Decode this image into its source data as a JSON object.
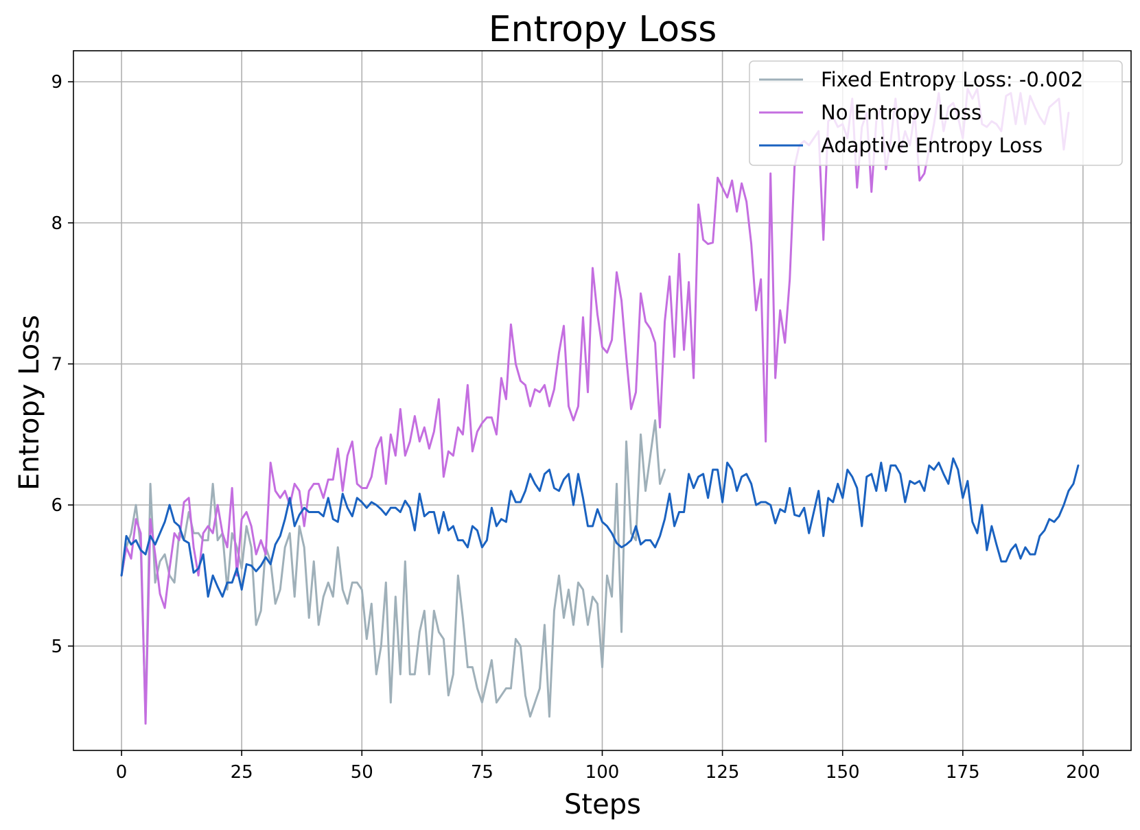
{
  "chart_data": {
    "type": "line",
    "title": "Entropy Loss",
    "xlabel": "Steps",
    "ylabel": "Entropy Loss",
    "xlim": [
      -10,
      210
    ],
    "ylim": [
      4.26,
      9.22
    ],
    "xticks": [
      0,
      25,
      50,
      75,
      100,
      125,
      150,
      175,
      200
    ],
    "yticks": [
      5,
      6,
      7,
      8,
      9
    ],
    "grid": true,
    "legend_position": "top-right",
    "series": [
      {
        "name": "Fixed Entropy Loss: -0.002",
        "color": "#9fb0b9",
        "x_start": 0,
        "values": [
          5.5,
          5.7,
          5.8,
          6.0,
          5.7,
          4.5,
          6.15,
          5.45,
          5.6,
          5.65,
          5.5,
          5.45,
          5.8,
          5.75,
          5.95,
          5.8,
          5.8,
          5.75,
          5.75,
          6.15,
          5.75,
          5.8,
          5.4,
          5.8,
          5.7,
          5.55,
          5.85,
          5.7,
          5.15,
          5.25,
          5.7,
          5.6,
          5.3,
          5.4,
          5.7,
          5.8,
          5.35,
          5.85,
          5.7,
          5.2,
          5.6,
          5.15,
          5.35,
          5.45,
          5.35,
          5.7,
          5.4,
          5.3,
          5.45,
          5.45,
          5.4,
          5.05,
          5.3,
          4.8,
          5.0,
          5.45,
          4.6,
          5.35,
          4.8,
          5.6,
          4.8,
          4.8,
          5.1,
          5.25,
          4.8,
          5.25,
          5.1,
          5.05,
          4.65,
          4.8,
          5.5,
          5.2,
          4.85,
          4.85,
          4.7,
          4.6,
          4.75,
          4.9,
          4.6,
          4.65,
          4.7,
          4.7,
          5.05,
          5.0,
          4.65,
          4.5,
          4.6,
          4.7,
          5.15,
          4.5,
          5.25,
          5.5,
          5.2,
          5.4,
          5.15,
          5.45,
          5.4,
          5.15,
          5.35,
          5.3,
          4.85,
          5.5,
          5.35,
          6.15,
          5.1,
          6.45,
          5.8,
          5.75,
          6.5,
          6.1,
          6.35,
          6.6,
          6.15,
          6.25
        ]
      },
      {
        "name": "No Entropy Loss",
        "color": "#c46ee0",
        "x_start": 0,
        "values": [
          5.5,
          5.7,
          5.62,
          5.9,
          5.8,
          4.45,
          5.9,
          5.65,
          5.37,
          5.27,
          5.55,
          5.8,
          5.75,
          6.02,
          6.05,
          5.7,
          5.5,
          5.8,
          5.85,
          5.8,
          6.0,
          5.8,
          5.7,
          6.12,
          5.5,
          5.9,
          5.95,
          5.85,
          5.65,
          5.75,
          5.65,
          6.3,
          6.1,
          6.05,
          6.1,
          6.0,
          6.15,
          6.1,
          5.85,
          6.1,
          6.15,
          6.15,
          6.05,
          6.18,
          6.18,
          6.4,
          6.1,
          6.35,
          6.45,
          6.15,
          6.12,
          6.12,
          6.2,
          6.4,
          6.48,
          6.15,
          6.5,
          6.35,
          6.68,
          6.35,
          6.45,
          6.63,
          6.45,
          6.55,
          6.4,
          6.52,
          6.75,
          6.2,
          6.38,
          6.35,
          6.55,
          6.5,
          6.85,
          6.38,
          6.52,
          6.58,
          6.62,
          6.62,
          6.5,
          6.9,
          6.75,
          7.28,
          7.0,
          6.88,
          6.85,
          6.7,
          6.82,
          6.8,
          6.85,
          6.7,
          6.82,
          7.08,
          7.27,
          6.7,
          6.6,
          6.7,
          7.33,
          6.8,
          7.68,
          7.35,
          7.12,
          7.08,
          7.17,
          7.65,
          7.45,
          7.05,
          6.68,
          6.8,
          7.5,
          7.3,
          7.25,
          7.15,
          6.55,
          7.3,
          7.62,
          7.05,
          7.78,
          7.1,
          7.58,
          6.9,
          8.13,
          7.88,
          7.85,
          7.86,
          8.32,
          8.25,
          8.18,
          8.3,
          8.08,
          8.28,
          8.15,
          7.85,
          7.38,
          7.6,
          6.45,
          8.35,
          6.9,
          7.38,
          7.15,
          7.6,
          8.4,
          8.55,
          8.58,
          8.55,
          8.6,
          8.65,
          7.88,
          8.72,
          8.75,
          8.68,
          8.7,
          8.6,
          8.88,
          8.25,
          8.68,
          8.78,
          8.22,
          8.72,
          8.82,
          8.38,
          8.58,
          8.88,
          8.5,
          8.65,
          8.55,
          8.78,
          8.3,
          8.35,
          8.52,
          8.7,
          8.92,
          8.65,
          8.82,
          8.85,
          8.75,
          8.6,
          8.95,
          8.88,
          8.95,
          8.7,
          8.68,
          8.72,
          8.7,
          8.65,
          8.9,
          8.92,
          8.7,
          8.92,
          8.7,
          8.9,
          8.82,
          8.75,
          8.7,
          8.82,
          8.85,
          8.88,
          8.52,
          8.78
        ]
      },
      {
        "name": "Adaptive Entropy Loss",
        "color": "#1a62c0",
        "x_start": 0,
        "values": [
          5.5,
          5.78,
          5.72,
          5.75,
          5.68,
          5.65,
          5.78,
          5.72,
          5.8,
          5.88,
          6.0,
          5.88,
          5.85,
          5.75,
          5.73,
          5.52,
          5.55,
          5.65,
          5.35,
          5.5,
          5.42,
          5.35,
          5.45,
          5.45,
          5.55,
          5.4,
          5.58,
          5.57,
          5.53,
          5.57,
          5.63,
          5.58,
          5.72,
          5.78,
          5.9,
          6.05,
          5.85,
          5.93,
          5.98,
          5.95,
          5.95,
          5.95,
          5.92,
          6.05,
          5.9,
          5.88,
          6.08,
          5.98,
          5.92,
          6.05,
          6.02,
          5.98,
          6.02,
          6.0,
          5.97,
          5.93,
          5.98,
          5.98,
          5.95,
          6.03,
          5.98,
          5.82,
          6.08,
          5.92,
          5.95,
          5.95,
          5.8,
          5.95,
          5.82,
          5.85,
          5.75,
          5.75,
          5.7,
          5.85,
          5.82,
          5.7,
          5.75,
          5.98,
          5.85,
          5.9,
          5.88,
          6.1,
          6.02,
          6.02,
          6.1,
          6.22,
          6.15,
          6.1,
          6.22,
          6.25,
          6.12,
          6.1,
          6.18,
          6.22,
          6.0,
          6.22,
          6.05,
          5.85,
          5.85,
          5.97,
          5.88,
          5.85,
          5.8,
          5.73,
          5.7,
          5.72,
          5.75,
          5.85,
          5.72,
          5.75,
          5.75,
          5.7,
          5.78,
          5.9,
          6.08,
          5.85,
          5.95,
          5.95,
          6.22,
          6.12,
          6.2,
          6.22,
          6.05,
          6.25,
          6.25,
          6.02,
          6.3,
          6.25,
          6.1,
          6.2,
          6.22,
          6.15,
          6.0,
          6.02,
          6.02,
          6.0,
          5.87,
          5.97,
          5.95,
          6.12,
          5.93,
          5.92,
          5.98,
          5.8,
          5.95,
          6.1,
          5.78,
          6.05,
          6.02,
          6.15,
          6.05,
          6.25,
          6.2,
          6.12,
          5.85,
          6.2,
          6.22,
          6.1,
          6.3,
          6.1,
          6.28,
          6.28,
          6.22,
          6.02,
          6.17,
          6.15,
          6.17,
          6.1,
          6.28,
          6.25,
          6.3,
          6.22,
          6.15,
          6.33,
          6.25,
          6.05,
          6.17,
          5.88,
          5.8,
          6.0,
          5.68,
          5.85,
          5.72,
          5.6,
          5.6,
          5.68,
          5.72,
          5.62,
          5.7,
          5.65,
          5.65,
          5.78,
          5.82,
          5.9,
          5.88,
          5.92,
          6.0,
          6.1,
          6.15,
          6.28
        ]
      }
    ]
  }
}
